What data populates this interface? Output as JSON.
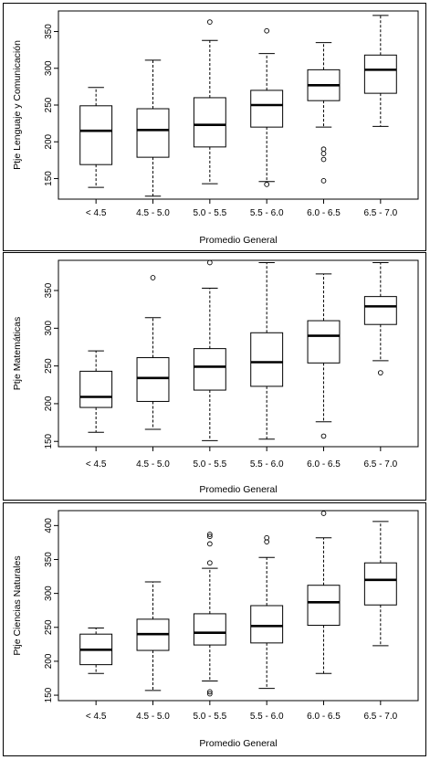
{
  "chart_data": [
    {
      "type": "boxplot",
      "ylabel": "Ptje Lenguaje y Comunicación",
      "xlabel": "Promedio General",
      "categories": [
        "< 4.5",
        "4.5 - 5.0",
        "5.0 - 5.5",
        "5.5 - 6.0",
        "6.0 - 6.5",
        "6.5 - 7.0"
      ],
      "yticks": [
        150,
        200,
        250,
        300,
        350
      ],
      "ylim": [
        122,
        378
      ],
      "boxes": [
        {
          "min": 138,
          "q1": 169,
          "median": 215,
          "q3": 249,
          "max": 274,
          "outliers": []
        },
        {
          "min": 126,
          "q1": 179,
          "median": 216,
          "q3": 245,
          "max": 311,
          "outliers": []
        },
        {
          "min": 143,
          "q1": 193,
          "median": 223,
          "q3": 260,
          "max": 338,
          "outliers": [
            363
          ]
        },
        {
          "min": 146,
          "q1": 220,
          "median": 250,
          "q3": 270,
          "max": 320,
          "outliers": [
            142,
            351
          ]
        },
        {
          "min": 220,
          "q1": 256,
          "median": 277,
          "q3": 298,
          "max": 335,
          "outliers": [
            190,
            184,
            176,
            147
          ]
        },
        {
          "min": 221,
          "q1": 266,
          "median": 298,
          "q3": 318,
          "max": 372,
          "outliers": []
        }
      ]
    },
    {
      "type": "boxplot",
      "ylabel": "Ptje Matemáticas",
      "xlabel": "Promedio General",
      "categories": [
        "< 4.5",
        "4.5 - 5.0",
        "5.0 - 5.5",
        "5.5 - 6.0",
        "6.0 - 6.5",
        "6.5 - 7.0"
      ],
      "yticks": [
        150,
        200,
        250,
        300,
        350
      ],
      "ylim": [
        143,
        390
      ],
      "boxes": [
        {
          "min": 162,
          "q1": 195,
          "median": 209,
          "q3": 243,
          "max": 270,
          "outliers": []
        },
        {
          "min": 166,
          "q1": 203,
          "median": 234,
          "q3": 261,
          "max": 314,
          "outliers": [
            367
          ]
        },
        {
          "min": 151,
          "q1": 218,
          "median": 249,
          "q3": 273,
          "max": 353,
          "outliers": [
            387
          ]
        },
        {
          "min": 153,
          "q1": 223,
          "median": 255,
          "q3": 294,
          "max": 387,
          "outliers": []
        },
        {
          "min": 176,
          "q1": 254,
          "median": 290,
          "q3": 310,
          "max": 372,
          "outliers": [
            157
          ]
        },
        {
          "min": 257,
          "q1": 305,
          "median": 329,
          "q3": 342,
          "max": 387,
          "outliers": [
            241
          ]
        }
      ]
    },
    {
      "type": "boxplot",
      "ylabel": "Ptje Ciencias Naturales",
      "xlabel": "Promedio General",
      "categories": [
        "< 4.5",
        "4.5 - 5.0",
        "5.0 - 5.5",
        "5.5 - 6.0",
        "6.0 - 6.5",
        "6.5 - 7.0"
      ],
      "yticks": [
        150,
        200,
        250,
        300,
        350,
        400
      ],
      "ylim": [
        142,
        422
      ],
      "boxes": [
        {
          "min": 182,
          "q1": 195,
          "median": 217,
          "q3": 240,
          "max": 249,
          "outliers": []
        },
        {
          "min": 157,
          "q1": 216,
          "median": 240,
          "q3": 262,
          "max": 317,
          "outliers": []
        },
        {
          "min": 171,
          "q1": 224,
          "median": 242,
          "q3": 270,
          "max": 337,
          "outliers": [
            387,
            384,
            373,
            345,
            155,
            152
          ]
        },
        {
          "min": 160,
          "q1": 227,
          "median": 252,
          "q3": 282,
          "max": 353,
          "outliers": [
            382,
            376
          ]
        },
        {
          "min": 182,
          "q1": 253,
          "median": 287,
          "q3": 312,
          "max": 382,
          "outliers": [
            418
          ]
        },
        {
          "min": 223,
          "q1": 283,
          "median": 320,
          "q3": 345,
          "max": 406,
          "outliers": []
        }
      ]
    }
  ]
}
